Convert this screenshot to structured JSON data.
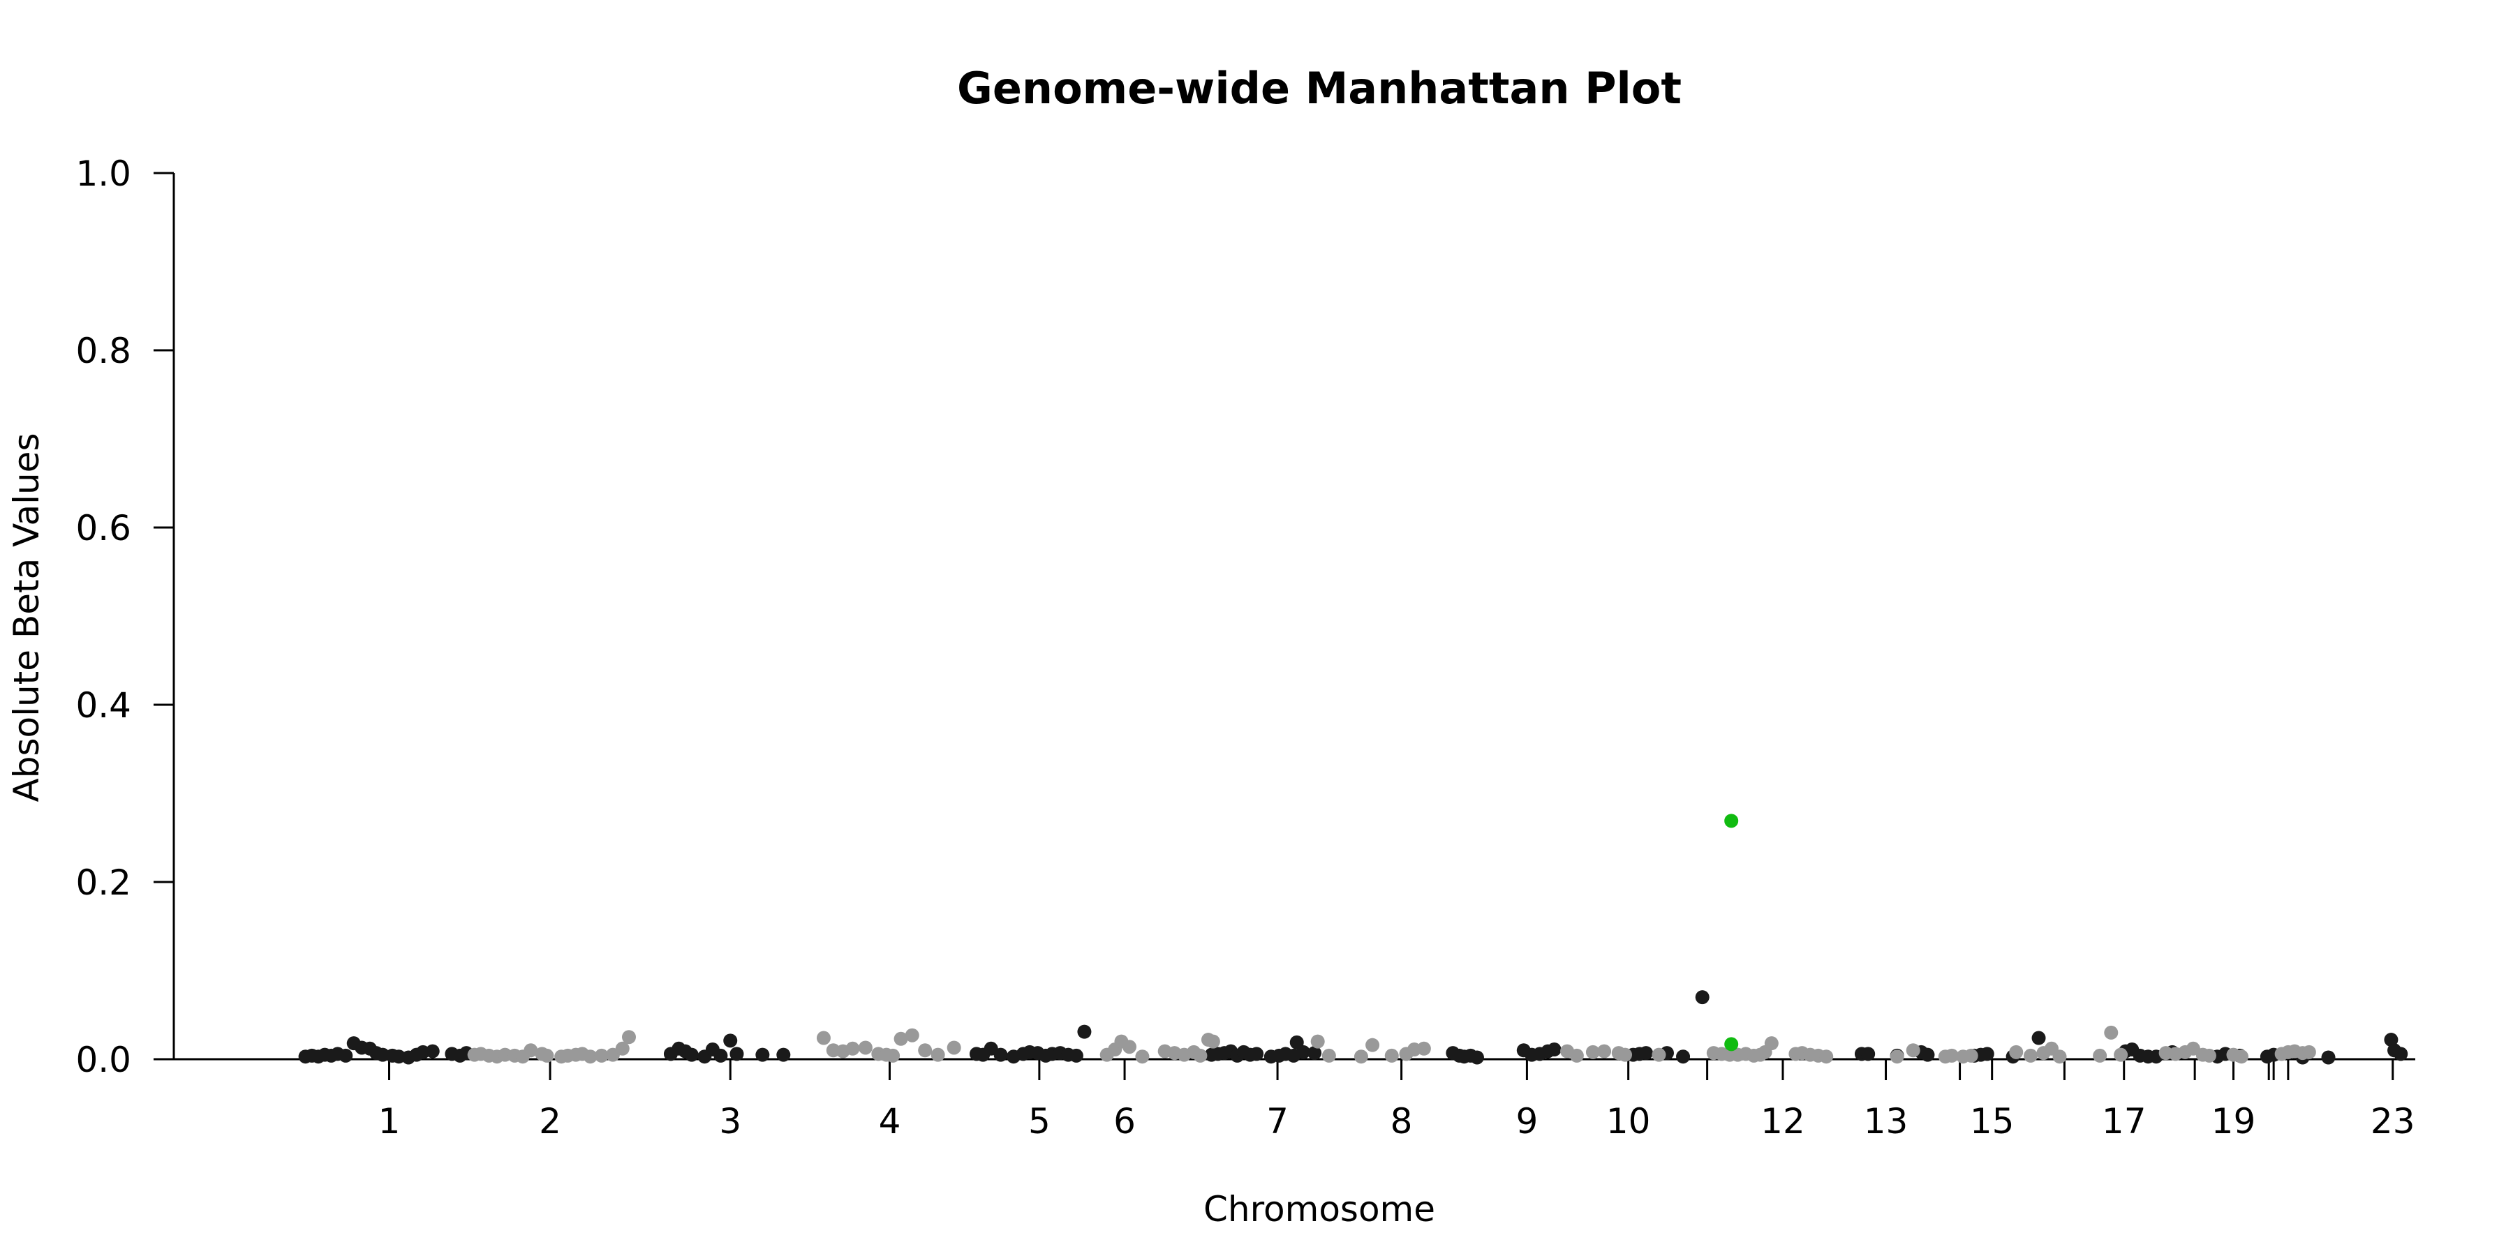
{
  "chart_data": {
    "type": "scatter",
    "title": "Genome-wide Manhattan Plot",
    "xlabel": "Chromosome",
    "ylabel": "Absolute Beta Values",
    "ylim": [
      0,
      1.0
    ],
    "y_ticks": [
      "0.0",
      "0.2",
      "0.4",
      "0.6",
      "0.8",
      "1.0"
    ],
    "x_ticks": [
      {
        "label": "1",
        "x": 52
      },
      {
        "label": "2",
        "x": 152
      },
      {
        "label": "3",
        "x": 264
      },
      {
        "label": "4",
        "x": 363
      },
      {
        "label": "5",
        "x": 456
      },
      {
        "label": "6",
        "x": 509
      },
      {
        "label": "7",
        "x": 604
      },
      {
        "label": "8",
        "x": 681
      },
      {
        "label": "9",
        "x": 759
      },
      {
        "label": "10",
        "x": 822
      },
      {
        "label": "",
        "x": 871
      },
      {
        "label": "12",
        "x": 918
      },
      {
        "label": "13",
        "x": 982
      },
      {
        "label": "",
        "x": 1028
      },
      {
        "label": "15",
        "x": 1048
      },
      {
        "label": "",
        "x": 1093
      },
      {
        "label": "17",
        "x": 1130
      },
      {
        "label": "",
        "x": 1174
      },
      {
        "label": "19",
        "x": 1198
      },
      {
        "label": "",
        "x": 1220
      },
      {
        "label": "",
        "x": 1223
      },
      {
        "label": "",
        "x": 1232
      },
      {
        "label": "23",
        "x": 1297
      }
    ],
    "xlim": [
      -38,
      1311
    ],
    "grid": false,
    "legend": "none",
    "colors": {
      "odd_chromosome": "#1a1a1a",
      "even_chromosome": "#999999",
      "highlight": "#11bb11"
    },
    "series": [
      {
        "color_key": "odd_chromosome",
        "points": [
          [
            0,
            0.003
          ],
          [
            4,
            0.004
          ],
          [
            8,
            0.003
          ],
          [
            12,
            0.005
          ],
          [
            16,
            0.004
          ],
          [
            20,
            0.006
          ],
          [
            25,
            0.004
          ],
          [
            30,
            0.018
          ],
          [
            35,
            0.013
          ],
          [
            40,
            0.012
          ],
          [
            44,
            0.007
          ],
          [
            48,
            0.005
          ],
          [
            54,
            0.004
          ],
          [
            58,
            0.003
          ],
          [
            64,
            0.002
          ],
          [
            69,
            0.005
          ],
          [
            73,
            0.008
          ],
          [
            79,
            0.009
          ],
          [
            91,
            0.006
          ],
          [
            96,
            0.004
          ],
          [
            100,
            0.007
          ],
          [
            227,
            0.006
          ],
          [
            232,
            0.012
          ],
          [
            236,
            0.009
          ],
          [
            240,
            0.005
          ],
          [
            248,
            0.003
          ],
          [
            253,
            0.011
          ],
          [
            258,
            0.004
          ],
          [
            264,
            0.021
          ],
          [
            268,
            0.006
          ],
          [
            284,
            0.005
          ],
          [
            297,
            0.005
          ],
          [
            417,
            0.006
          ],
          [
            421,
            0.005
          ],
          [
            426,
            0.012
          ],
          [
            432,
            0.005
          ],
          [
            440,
            0.003
          ],
          [
            446,
            0.006
          ],
          [
            450,
            0.008
          ],
          [
            455,
            0.007
          ],
          [
            460,
            0.004
          ],
          [
            464,
            0.006
          ],
          [
            469,
            0.007
          ],
          [
            474,
            0.005
          ],
          [
            479,
            0.004
          ],
          [
            484,
            0.031
          ],
          [
            563,
            0.005
          ],
          [
            567,
            0.006
          ],
          [
            571,
            0.007
          ],
          [
            575,
            0.009
          ],
          [
            579,
            0.004
          ],
          [
            583,
            0.008
          ],
          [
            587,
            0.005
          ],
          [
            591,
            0.006
          ],
          [
            600,
            0.003
          ],
          [
            605,
            0.004
          ],
          [
            609,
            0.006
          ],
          [
            614,
            0.004
          ],
          [
            616,
            0.019
          ],
          [
            620,
            0.008
          ],
          [
            627,
            0.007
          ],
          [
            713,
            0.007
          ],
          [
            717,
            0.004
          ],
          [
            720,
            0.003
          ],
          [
            724,
            0.004
          ],
          [
            728,
            0.002
          ],
          [
            757,
            0.01
          ],
          [
            762,
            0.005
          ],
          [
            767,
            0.006
          ],
          [
            772,
            0.009
          ],
          [
            776,
            0.011
          ],
          [
            825,
            0.005
          ],
          [
            829,
            0.006
          ],
          [
            833,
            0.007
          ],
          [
            846,
            0.007
          ],
          [
            856,
            0.003
          ],
          [
            868,
            0.07
          ],
          [
            967,
            0.006
          ],
          [
            971,
            0.006
          ],
          [
            989,
            0.004
          ],
          [
            1004,
            0.008
          ],
          [
            1008,
            0.005
          ],
          [
            1037,
            0.004
          ],
          [
            1041,
            0.005
          ],
          [
            1045,
            0.006
          ],
          [
            1061,
            0.003
          ],
          [
            1077,
            0.024
          ],
          [
            1131,
            0.009
          ],
          [
            1135,
            0.011
          ],
          [
            1140,
            0.004
          ],
          [
            1145,
            0.003
          ],
          [
            1150,
            0.003
          ],
          [
            1160,
            0.008
          ],
          [
            1188,
            0.003
          ],
          [
            1193,
            0.006
          ],
          [
            1202,
            0.004
          ],
          [
            1219,
            0.003
          ],
          [
            1223,
            0.005
          ],
          [
            1241,
            0.002
          ],
          [
            1257,
            0.002
          ],
          [
            1296,
            0.022
          ],
          [
            1298,
            0.01
          ],
          [
            1302,
            0.006
          ]
        ]
      },
      {
        "color_key": "even_chromosome",
        "points": [
          [
            105,
            0.005
          ],
          [
            109,
            0.006
          ],
          [
            114,
            0.004
          ],
          [
            119,
            0.003
          ],
          [
            124,
            0.005
          ],
          [
            130,
            0.004
          ],
          [
            135,
            0.003
          ],
          [
            140,
            0.01
          ],
          [
            147,
            0.006
          ],
          [
            150,
            0.004
          ],
          [
            159,
            0.003
          ],
          [
            163,
            0.004
          ],
          [
            168,
            0.005
          ],
          [
            172,
            0.006
          ],
          [
            177,
            0.003
          ],
          [
            184,
            0.004
          ],
          [
            191,
            0.005
          ],
          [
            197,
            0.012
          ],
          [
            201,
            0.025
          ],
          [
            322,
            0.024
          ],
          [
            328,
            0.01
          ],
          [
            334,
            0.009
          ],
          [
            340,
            0.012
          ],
          [
            348,
            0.013
          ],
          [
            356,
            0.006
          ],
          [
            361,
            0.005
          ],
          [
            365,
            0.004
          ],
          [
            370,
            0.023
          ],
          [
            377,
            0.027
          ],
          [
            385,
            0.01
          ],
          [
            393,
            0.005
          ],
          [
            403,
            0.013
          ],
          [
            498,
            0.005
          ],
          [
            503,
            0.011
          ],
          [
            507,
            0.02
          ],
          [
            512,
            0.014
          ],
          [
            520,
            0.003
          ],
          [
            534,
            0.009
          ],
          [
            540,
            0.007
          ],
          [
            546,
            0.005
          ],
          [
            552,
            0.008
          ],
          [
            556,
            0.004
          ],
          [
            561,
            0.022
          ],
          [
            564,
            0.02
          ],
          [
            629,
            0.02
          ],
          [
            636,
            0.004
          ],
          [
            656,
            0.003
          ],
          [
            663,
            0.016
          ],
          [
            675,
            0.004
          ],
          [
            684,
            0.006
          ],
          [
            689,
            0.011
          ],
          [
            695,
            0.012
          ],
          [
            784,
            0.009
          ],
          [
            790,
            0.004
          ],
          [
            800,
            0.008
          ],
          [
            807,
            0.009
          ],
          [
            816,
            0.007
          ],
          [
            820,
            0.005
          ],
          [
            841,
            0.005
          ],
          [
            875,
            0.007
          ],
          [
            880,
            0.006
          ],
          [
            885,
            0.005
          ],
          [
            890,
            0.005
          ],
          [
            895,
            0.006
          ],
          [
            900,
            0.004
          ],
          [
            904,
            0.005
          ],
          [
            907,
            0.008
          ],
          [
            911,
            0.018
          ],
          [
            926,
            0.006
          ],
          [
            930,
            0.007
          ],
          [
            935,
            0.005
          ],
          [
            940,
            0.004
          ],
          [
            945,
            0.003
          ],
          [
            989,
            0.003
          ],
          [
            999,
            0.01
          ],
          [
            1019,
            0.003
          ],
          [
            1023,
            0.004
          ],
          [
            1030,
            0.003
          ],
          [
            1035,
            0.004
          ],
          [
            1063,
            0.008
          ],
          [
            1072,
            0.004
          ],
          [
            1080,
            0.007
          ],
          [
            1085,
            0.012
          ],
          [
            1090,
            0.003
          ],
          [
            1115,
            0.004
          ],
          [
            1122,
            0.03
          ],
          [
            1128,
            0.005
          ],
          [
            1156,
            0.007
          ],
          [
            1162,
            0.006
          ],
          [
            1168,
            0.008
          ],
          [
            1173,
            0.012
          ],
          [
            1179,
            0.005
          ],
          [
            1183,
            0.004
          ],
          [
            1198,
            0.005
          ],
          [
            1203,
            0.003
          ],
          [
            1228,
            0.006
          ],
          [
            1232,
            0.008
          ],
          [
            1236,
            0.009
          ],
          [
            1241,
            0.007
          ],
          [
            1245,
            0.008
          ]
        ]
      },
      {
        "color_key": "highlight",
        "points": [
          [
            886,
            0.269
          ],
          [
            886,
            0.017
          ]
        ]
      }
    ]
  }
}
